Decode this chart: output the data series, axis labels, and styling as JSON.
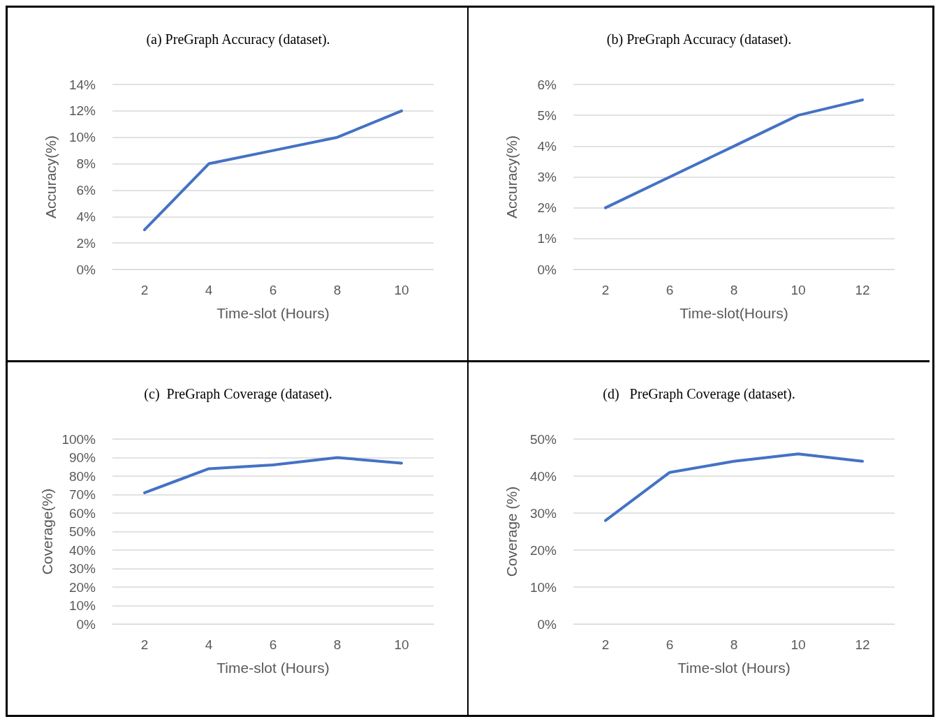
{
  "chart_data": [
    {
      "type": "line",
      "title": "(a) PreGraph Accuracy (dataset).",
      "xlabel": "Time-slot (Hours)",
      "ylabel": "Accuracy(%)",
      "categories": [
        "2",
        "4",
        "6",
        "8",
        "10"
      ],
      "series": [
        {
          "color": "#4472c4",
          "values": [
            3,
            8,
            9,
            10,
            12
          ]
        }
      ],
      "ylim": [
        0,
        14
      ],
      "yticks": [
        {
          "value": 0,
          "label": "0%"
        },
        {
          "value": 2,
          "label": "2%"
        },
        {
          "value": 4,
          "label": "4%"
        },
        {
          "value": 6,
          "label": "6%"
        },
        {
          "value": 8,
          "label": "8%"
        },
        {
          "value": 10,
          "label": "10%"
        },
        {
          "value": 12,
          "label": "12%"
        },
        {
          "value": 14,
          "label": "14%"
        }
      ],
      "grid": "y"
    },
    {
      "type": "line",
      "title": "(b) PreGraph Accuracy (dataset).",
      "xlabel": "Time-slot(Hours)",
      "ylabel": "Accuracy(%)",
      "categories": [
        "2",
        "6",
        "8",
        "10",
        "12"
      ],
      "series": [
        {
          "color": "#4472c4",
          "values": [
            2,
            3,
            4,
            5,
            5.5
          ]
        }
      ],
      "ylim": [
        0,
        6
      ],
      "yticks": [
        {
          "value": 0,
          "label": "0%"
        },
        {
          "value": 1,
          "label": "1%"
        },
        {
          "value": 2,
          "label": "2%"
        },
        {
          "value": 3,
          "label": "3%"
        },
        {
          "value": 4,
          "label": "4%"
        },
        {
          "value": 5,
          "label": "5%"
        },
        {
          "value": 6,
          "label": "6%"
        }
      ],
      "grid": "y"
    },
    {
      "type": "line",
      "title": "(c)  PreGraph Coverage (dataset).",
      "xlabel": "Time-slot (Hours)",
      "ylabel": "Coverage(%)",
      "categories": [
        "2",
        "4",
        "6",
        "8",
        "10"
      ],
      "series": [
        {
          "color": "#4472c4",
          "values": [
            71,
            84,
            86,
            90,
            87
          ]
        }
      ],
      "ylim": [
        0,
        100
      ],
      "yticks": [
        {
          "value": 0,
          "label": "0%"
        },
        {
          "value": 10,
          "label": "10%"
        },
        {
          "value": 20,
          "label": "20%"
        },
        {
          "value": 30,
          "label": "30%"
        },
        {
          "value": 40,
          "label": "40%"
        },
        {
          "value": 50,
          "label": "50%"
        },
        {
          "value": 60,
          "label": "60%"
        },
        {
          "value": 70,
          "label": "70%"
        },
        {
          "value": 80,
          "label": "80%"
        },
        {
          "value": 90,
          "label": "90%"
        },
        {
          "value": 100,
          "label": "100%"
        }
      ],
      "grid": "y"
    },
    {
      "type": "line",
      "title": "(d)   PreGraph Coverage (dataset).",
      "xlabel": "Time-slot (Hours)",
      "ylabel": "Coverage (%)",
      "categories": [
        "2",
        "6",
        "8",
        "10",
        "12"
      ],
      "series": [
        {
          "color": "#4472c4",
          "values": [
            28,
            41,
            44,
            46,
            44
          ]
        }
      ],
      "ylim": [
        0,
        50
      ],
      "yticks": [
        {
          "value": 0,
          "label": "0%"
        },
        {
          "value": 10,
          "label": "10%"
        },
        {
          "value": 20,
          "label": "20%"
        },
        {
          "value": 30,
          "label": "30%"
        },
        {
          "value": 40,
          "label": "40%"
        },
        {
          "value": 50,
          "label": "50%"
        }
      ],
      "grid": "y"
    }
  ]
}
